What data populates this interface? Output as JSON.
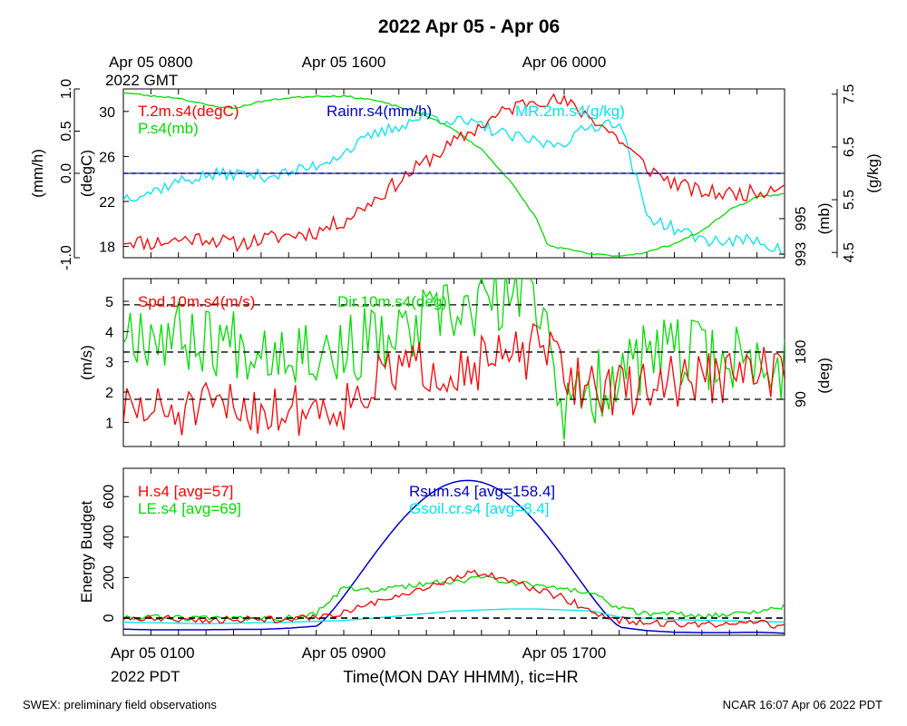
{
  "page": {
    "title": "2022 Apr 05 - Apr 06",
    "footer_left": "SWEX: preliminary field observations",
    "footer_right": "NCAR 16:07 Apr 06 2022 PDT"
  },
  "colors": {
    "red": "#ff0000",
    "green": "#00dd00",
    "blue": "#0000cc",
    "cyan": "#00e5ee",
    "black": "#000000"
  },
  "axes": {
    "top_ticks": [
      {
        "id": "gmt1",
        "line1": "Apr 05 0800",
        "line2": "2022 GMT",
        "hour": 0
      },
      {
        "id": "gmt2",
        "line1": "Apr 05 1600",
        "line2": "",
        "hour": 8
      },
      {
        "id": "gmt3",
        "line1": "Apr 06 0000",
        "line2": "",
        "hour": 16
      }
    ],
    "bottom_ticks": [
      {
        "id": "pdt1",
        "label": "Apr 05 0100",
        "hour": 0
      },
      {
        "id": "pdt2",
        "label": "Apr 05 0900",
        "hour": 8
      },
      {
        "id": "pdt3",
        "label": "Apr 05 1700",
        "hour": 16
      }
    ],
    "bottom_sub": "2022 PDT",
    "xlabel": "Time(MON DAY HHMM), tic=HR",
    "x_range_hours": [
      0,
      24
    ]
  },
  "chart_data": [
    {
      "id": "panel1",
      "type": "line",
      "x_units": "hours since Apr 05 0100 PDT",
      "axes": {
        "rain": {
          "label": "(mm/h)",
          "range": [
            -1.0,
            1.0
          ],
          "ticks": [
            -1.0,
            0.0,
            0.5,
            1.0
          ],
          "tick_labels": [
            "-1.0",
            "0.0",
            "0.5",
            "1.0"
          ]
        },
        "temp": {
          "label": "(degC)",
          "range": [
            17,
            32
          ],
          "ticks": [
            18,
            22,
            26,
            30
          ],
          "tick_labels": [
            "18",
            "22",
            "26",
            "30"
          ]
        },
        "pres": {
          "label": "(mb)",
          "range": [
            992.8,
            1002.3
          ],
          "ticks": [
            993,
            995
          ],
          "tick_labels": [
            "993",
            "995"
          ]
        },
        "mr": {
          "label": "(g/kg)",
          "range": [
            4.4,
            7.6
          ],
          "ticks": [
            4.5,
            5.5,
            6.5,
            7.5
          ],
          "tick_labels": [
            "4.5",
            "5.5",
            "6.5",
            "7.5"
          ]
        }
      },
      "legend": [
        {
          "label": "T.2m.s4(degC)",
          "color": "#ff0000"
        },
        {
          "label": "P.s4(mb)",
          "color": "#00dd00"
        },
        {
          "label": "Rainr.s4(mm/h)",
          "color": "#0000cc"
        },
        {
          "label": "MR.2m.s4(g/kg)",
          "color": "#00e5ee"
        }
      ],
      "series": [
        {
          "name": "T.2m.s4(degC)",
          "axis": "temp",
          "color": "#ff0000",
          "noise": 0.7,
          "seed": 11,
          "points": [
            [
              0,
              18.6
            ],
            [
              1,
              18.3
            ],
            [
              2,
              18.6
            ],
            [
              3,
              18.8
            ],
            [
              4,
              18.2
            ],
            [
              5,
              18.6
            ],
            [
              6,
              19.0
            ],
            [
              7,
              19.3
            ],
            [
              8,
              20.3
            ],
            [
              9,
              22.0
            ],
            [
              10,
              23.8
            ],
            [
              11,
              25.6
            ],
            [
              12,
              27.2
            ],
            [
              13,
              28.8
            ],
            [
              14,
              30.2
            ],
            [
              15,
              31.2
            ],
            [
              15.4,
              31.0
            ],
            [
              16,
              30.8
            ],
            [
              17,
              29.5
            ],
            [
              18,
              27.5
            ],
            [
              19,
              25.0
            ],
            [
              20,
              23.6
            ],
            [
              21,
              22.8
            ],
            [
              22,
              22.7
            ],
            [
              23,
              22.8
            ],
            [
              24,
              23.7
            ]
          ]
        },
        {
          "name": "P.s4(mb)",
          "axis": "pres",
          "color": "#00dd00",
          "noise": 0.05,
          "seed": 23,
          "points": [
            [
              0,
              1002.1
            ],
            [
              1,
              1001.9
            ],
            [
              2,
              1001.8
            ],
            [
              3,
              1001.4
            ],
            [
              4,
              1001.2
            ],
            [
              5,
              1001.6
            ],
            [
              6,
              1001.8
            ],
            [
              7,
              1001.9
            ],
            [
              8,
              1001.9
            ],
            [
              9,
              1001.7
            ],
            [
              10,
              1001.3
            ],
            [
              11,
              1000.8
            ],
            [
              12,
              1000.0
            ],
            [
              13,
              998.9
            ],
            [
              14,
              997.2
            ],
            [
              15,
              995.0
            ],
            [
              15.4,
              993.5
            ],
            [
              16,
              993.3
            ],
            [
              17,
              993.0
            ],
            [
              18,
              992.9
            ],
            [
              19,
              993.1
            ],
            [
              20,
              993.6
            ],
            [
              21,
              994.3
            ],
            [
              22,
              995.5
            ],
            [
              23,
              996.2
            ],
            [
              24,
              996.4
            ]
          ]
        },
        {
          "name": "Rainr.s4(mm/h)",
          "axis": "rain",
          "color": "#0000cc",
          "noise": 0,
          "seed": 1,
          "dashed": true,
          "points": [
            [
              0,
              0.0
            ],
            [
              24,
              0.0
            ]
          ]
        },
        {
          "name": "MR.2m.s4(g/kg)",
          "axis": "mr",
          "color": "#00e5ee",
          "noise": 0.12,
          "seed": 37,
          "points": [
            [
              0,
              5.55
            ],
            [
              1,
              5.65
            ],
            [
              2,
              5.85
            ],
            [
              3,
              5.95
            ],
            [
              4,
              6.0
            ],
            [
              5,
              5.95
            ],
            [
              6,
              6.0
            ],
            [
              7,
              6.15
            ],
            [
              8,
              6.4
            ],
            [
              9,
              6.7
            ],
            [
              10,
              6.9
            ],
            [
              11,
              7.1
            ],
            [
              12,
              7.0
            ],
            [
              13,
              6.9
            ],
            [
              14,
              6.7
            ],
            [
              15,
              6.6
            ],
            [
              15.4,
              6.55
            ],
            [
              16,
              6.6
            ],
            [
              17,
              6.9
            ],
            [
              18,
              7.0
            ],
            [
              19,
              5.2
            ],
            [
              20,
              4.95
            ],
            [
              21,
              4.75
            ],
            [
              22,
              4.7
            ],
            [
              23,
              4.75
            ],
            [
              24,
              4.5
            ]
          ]
        }
      ]
    },
    {
      "id": "panel2",
      "type": "line",
      "x_units": "hours since Apr 05 0100 PDT",
      "axes": {
        "spd": {
          "label": "(m/s)",
          "range": [
            0.2,
            5.75
          ],
          "ticks": [
            1,
            2,
            3,
            4,
            5
          ],
          "tick_labels": [
            "1",
            "2",
            "3",
            "4",
            "5"
          ]
        },
        "dir": {
          "label": "(deg)",
          "range": [
            0,
            320
          ],
          "ticks": [
            90,
            180
          ],
          "tick_labels": [
            "90",
            "180"
          ]
        }
      },
      "ref_lines_dir": [
        90,
        180,
        270
      ],
      "legend": [
        {
          "label": "Spd.10m.s4(m/s)",
          "color": "#ff0000"
        },
        {
          "label": "Dir.10m.s4(deg)",
          "color": "#00dd00"
        }
      ],
      "series": [
        {
          "name": "Spd.10m.s4(m/s)",
          "axis": "spd",
          "color": "#ff0000",
          "noise": 0.9,
          "seed": 51,
          "points": [
            [
              0,
              1.4
            ],
            [
              2,
              1.3
            ],
            [
              4,
              1.5
            ],
            [
              6,
              1.4
            ],
            [
              8,
              1.6
            ],
            [
              10,
              2.8
            ],
            [
              12,
              2.8
            ],
            [
              14,
              3.1
            ],
            [
              15.4,
              3.5
            ],
            [
              16,
              2.5
            ],
            [
              18,
              2.0
            ],
            [
              20,
              2.4
            ],
            [
              22,
              2.5
            ],
            [
              24,
              2.8
            ]
          ]
        },
        {
          "name": "Dir.10m.s4(deg)",
          "axis": "dir",
          "color": "#00dd00",
          "noise": 70,
          "seed": 67,
          "points": [
            [
              0,
              230
            ],
            [
              2,
              210
            ],
            [
              4,
              200
            ],
            [
              6,
              190
            ],
            [
              8,
              180
            ],
            [
              9,
              200
            ],
            [
              10,
              200
            ],
            [
              11,
              240
            ],
            [
              12,
              250
            ],
            [
              13,
              270
            ],
            [
              14,
              280
            ],
            [
              15,
              290
            ],
            [
              15.4,
              240
            ],
            [
              16,
              60
            ],
            [
              18,
              150
            ],
            [
              20,
              180
            ],
            [
              22,
              170
            ],
            [
              24,
              150
            ]
          ]
        }
      ]
    },
    {
      "id": "panel3",
      "type": "line",
      "x_units": "hours since Apr 05 0100 PDT",
      "axes": {
        "e": {
          "label": "Energy Budget",
          "range": [
            -85,
            740
          ],
          "ticks": [
            0,
            200,
            400,
            600
          ],
          "tick_labels": [
            "0",
            "200",
            "400",
            "600"
          ]
        }
      },
      "legend": [
        {
          "label": "H.s4 [avg=57]",
          "color": "#ff0000"
        },
        {
          "label": "LE.s4 [avg=69]",
          "color": "#00dd00"
        },
        {
          "label": "Rsum.s4 [avg=158.4]",
          "color": "#0000cc"
        },
        {
          "label": "Gsoil.cr.s4 [avg=8.4]",
          "color": "#00e5ee"
        }
      ],
      "series": [
        {
          "name": "H.s4 [avg=57]",
          "axis": "e",
          "color": "#ff0000",
          "noise": 18,
          "seed": 81,
          "points": [
            [
              0,
              0
            ],
            [
              2,
              -5
            ],
            [
              4,
              -10
            ],
            [
              6,
              -5
            ],
            [
              7,
              0
            ],
            [
              8,
              30
            ],
            [
              9,
              70
            ],
            [
              10,
              100
            ],
            [
              11,
              150
            ],
            [
              12,
              200
            ],
            [
              13,
              230
            ],
            [
              14,
              180
            ],
            [
              15,
              140
            ],
            [
              16,
              100
            ],
            [
              17,
              30
            ],
            [
              18,
              -10
            ],
            [
              19,
              -25
            ],
            [
              20,
              -30
            ],
            [
              21,
              -35
            ],
            [
              22,
              -30
            ],
            [
              23,
              -20
            ],
            [
              24,
              -40
            ]
          ]
        },
        {
          "name": "LE.s4 [avg=69]",
          "axis": "e",
          "color": "#00dd00",
          "noise": 14,
          "seed": 93,
          "points": [
            [
              0,
              5
            ],
            [
              2,
              0
            ],
            [
              4,
              -5
            ],
            [
              6,
              0
            ],
            [
              7,
              20
            ],
            [
              8,
              150
            ],
            [
              9,
              140
            ],
            [
              10,
              150
            ],
            [
              11,
              170
            ],
            [
              12,
              180
            ],
            [
              13,
              200
            ],
            [
              14,
              180
            ],
            [
              15,
              160
            ],
            [
              16,
              150
            ],
            [
              17,
              120
            ],
            [
              18,
              50
            ],
            [
              19,
              20
            ],
            [
              20,
              25
            ],
            [
              21,
              10
            ],
            [
              22,
              20
            ],
            [
              23,
              30
            ],
            [
              24,
              60
            ]
          ]
        },
        {
          "name": "Rsum.s4 [avg=158.4]",
          "axis": "e",
          "color": "#0000cc",
          "noise": 0,
          "seed": 2,
          "curve": "bell",
          "points": [
            [
              0,
              -55
            ],
            [
              1,
              -58
            ],
            [
              2,
              -58
            ],
            [
              3,
              -58
            ],
            [
              4,
              -56
            ],
            [
              5,
              -56
            ],
            [
              6,
              -50
            ],
            [
              7,
              -40
            ],
            [
              18,
              -45
            ],
            [
              19,
              -62
            ],
            [
              20,
              -70
            ],
            [
              21,
              -72
            ],
            [
              22,
              -72
            ],
            [
              23,
              -70
            ],
            [
              24,
              -75
            ]
          ]
        },
        {
          "name": "Gsoil.cr.s4 [avg=8.4]",
          "axis": "e",
          "color": "#00e5ee",
          "noise": 0,
          "seed": 3,
          "points": [
            [
              0,
              -20
            ],
            [
              3,
              -28
            ],
            [
              6,
              -20
            ],
            [
              8,
              -12
            ],
            [
              10,
              10
            ],
            [
              12,
              35
            ],
            [
              14,
              45
            ],
            [
              15,
              45
            ],
            [
              17,
              35
            ],
            [
              18,
              5
            ],
            [
              20,
              -8
            ],
            [
              24,
              -20
            ]
          ]
        }
      ],
      "ref_lines": [
        0
      ]
    }
  ]
}
